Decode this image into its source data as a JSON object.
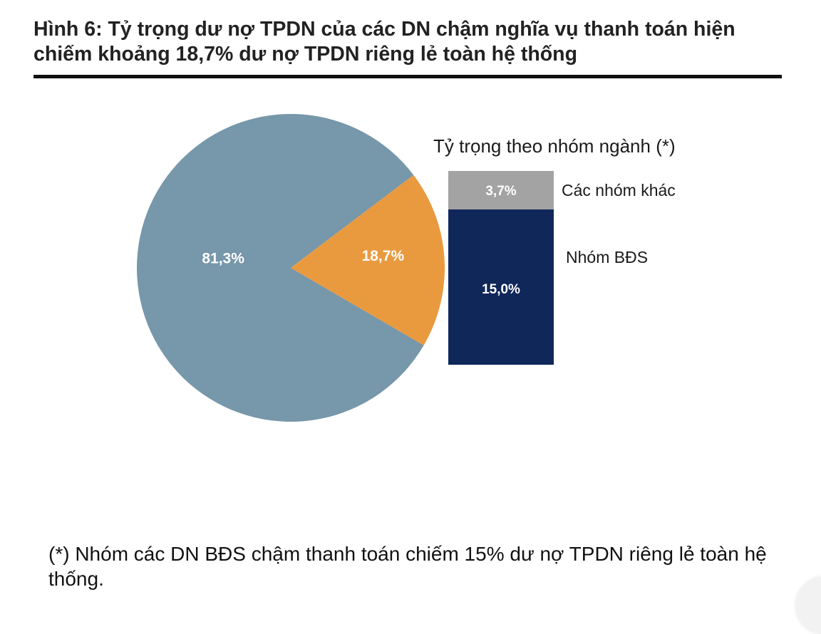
{
  "title": "Hình 6: Tỷ trọng dư nợ TPDN của các DN chậm nghĩa vụ thanh toán hiện chiếm khoảng 18,7% dư nợ TPDN riêng lẻ toàn hệ thống",
  "note": "(*) Nhóm các DN BĐS chậm thanh toán chiếm 15% dư nợ TPDN riêng lẻ toàn hệ thống.",
  "colors": {
    "pie_main": "#7797aa",
    "pie_highlight": "#e99a3f",
    "bar_other": "#a3a3a3",
    "bar_real_estate": "#10275a"
  },
  "chart_data": [
    {
      "type": "pie",
      "values": [
        81.3,
        18.7
      ],
      "labels": [
        "81,3%",
        "18,7%"
      ]
    },
    {
      "type": "bar",
      "stacked": true,
      "title": "Tỷ trọng theo nhóm ngành (*)",
      "series": [
        {
          "name": "Nhóm BĐS",
          "value": 15.0,
          "label": "15,0%"
        },
        {
          "name": "Các nhóm khác",
          "value": 3.7,
          "label": "3,7%"
        }
      ],
      "total": 18.7
    }
  ]
}
